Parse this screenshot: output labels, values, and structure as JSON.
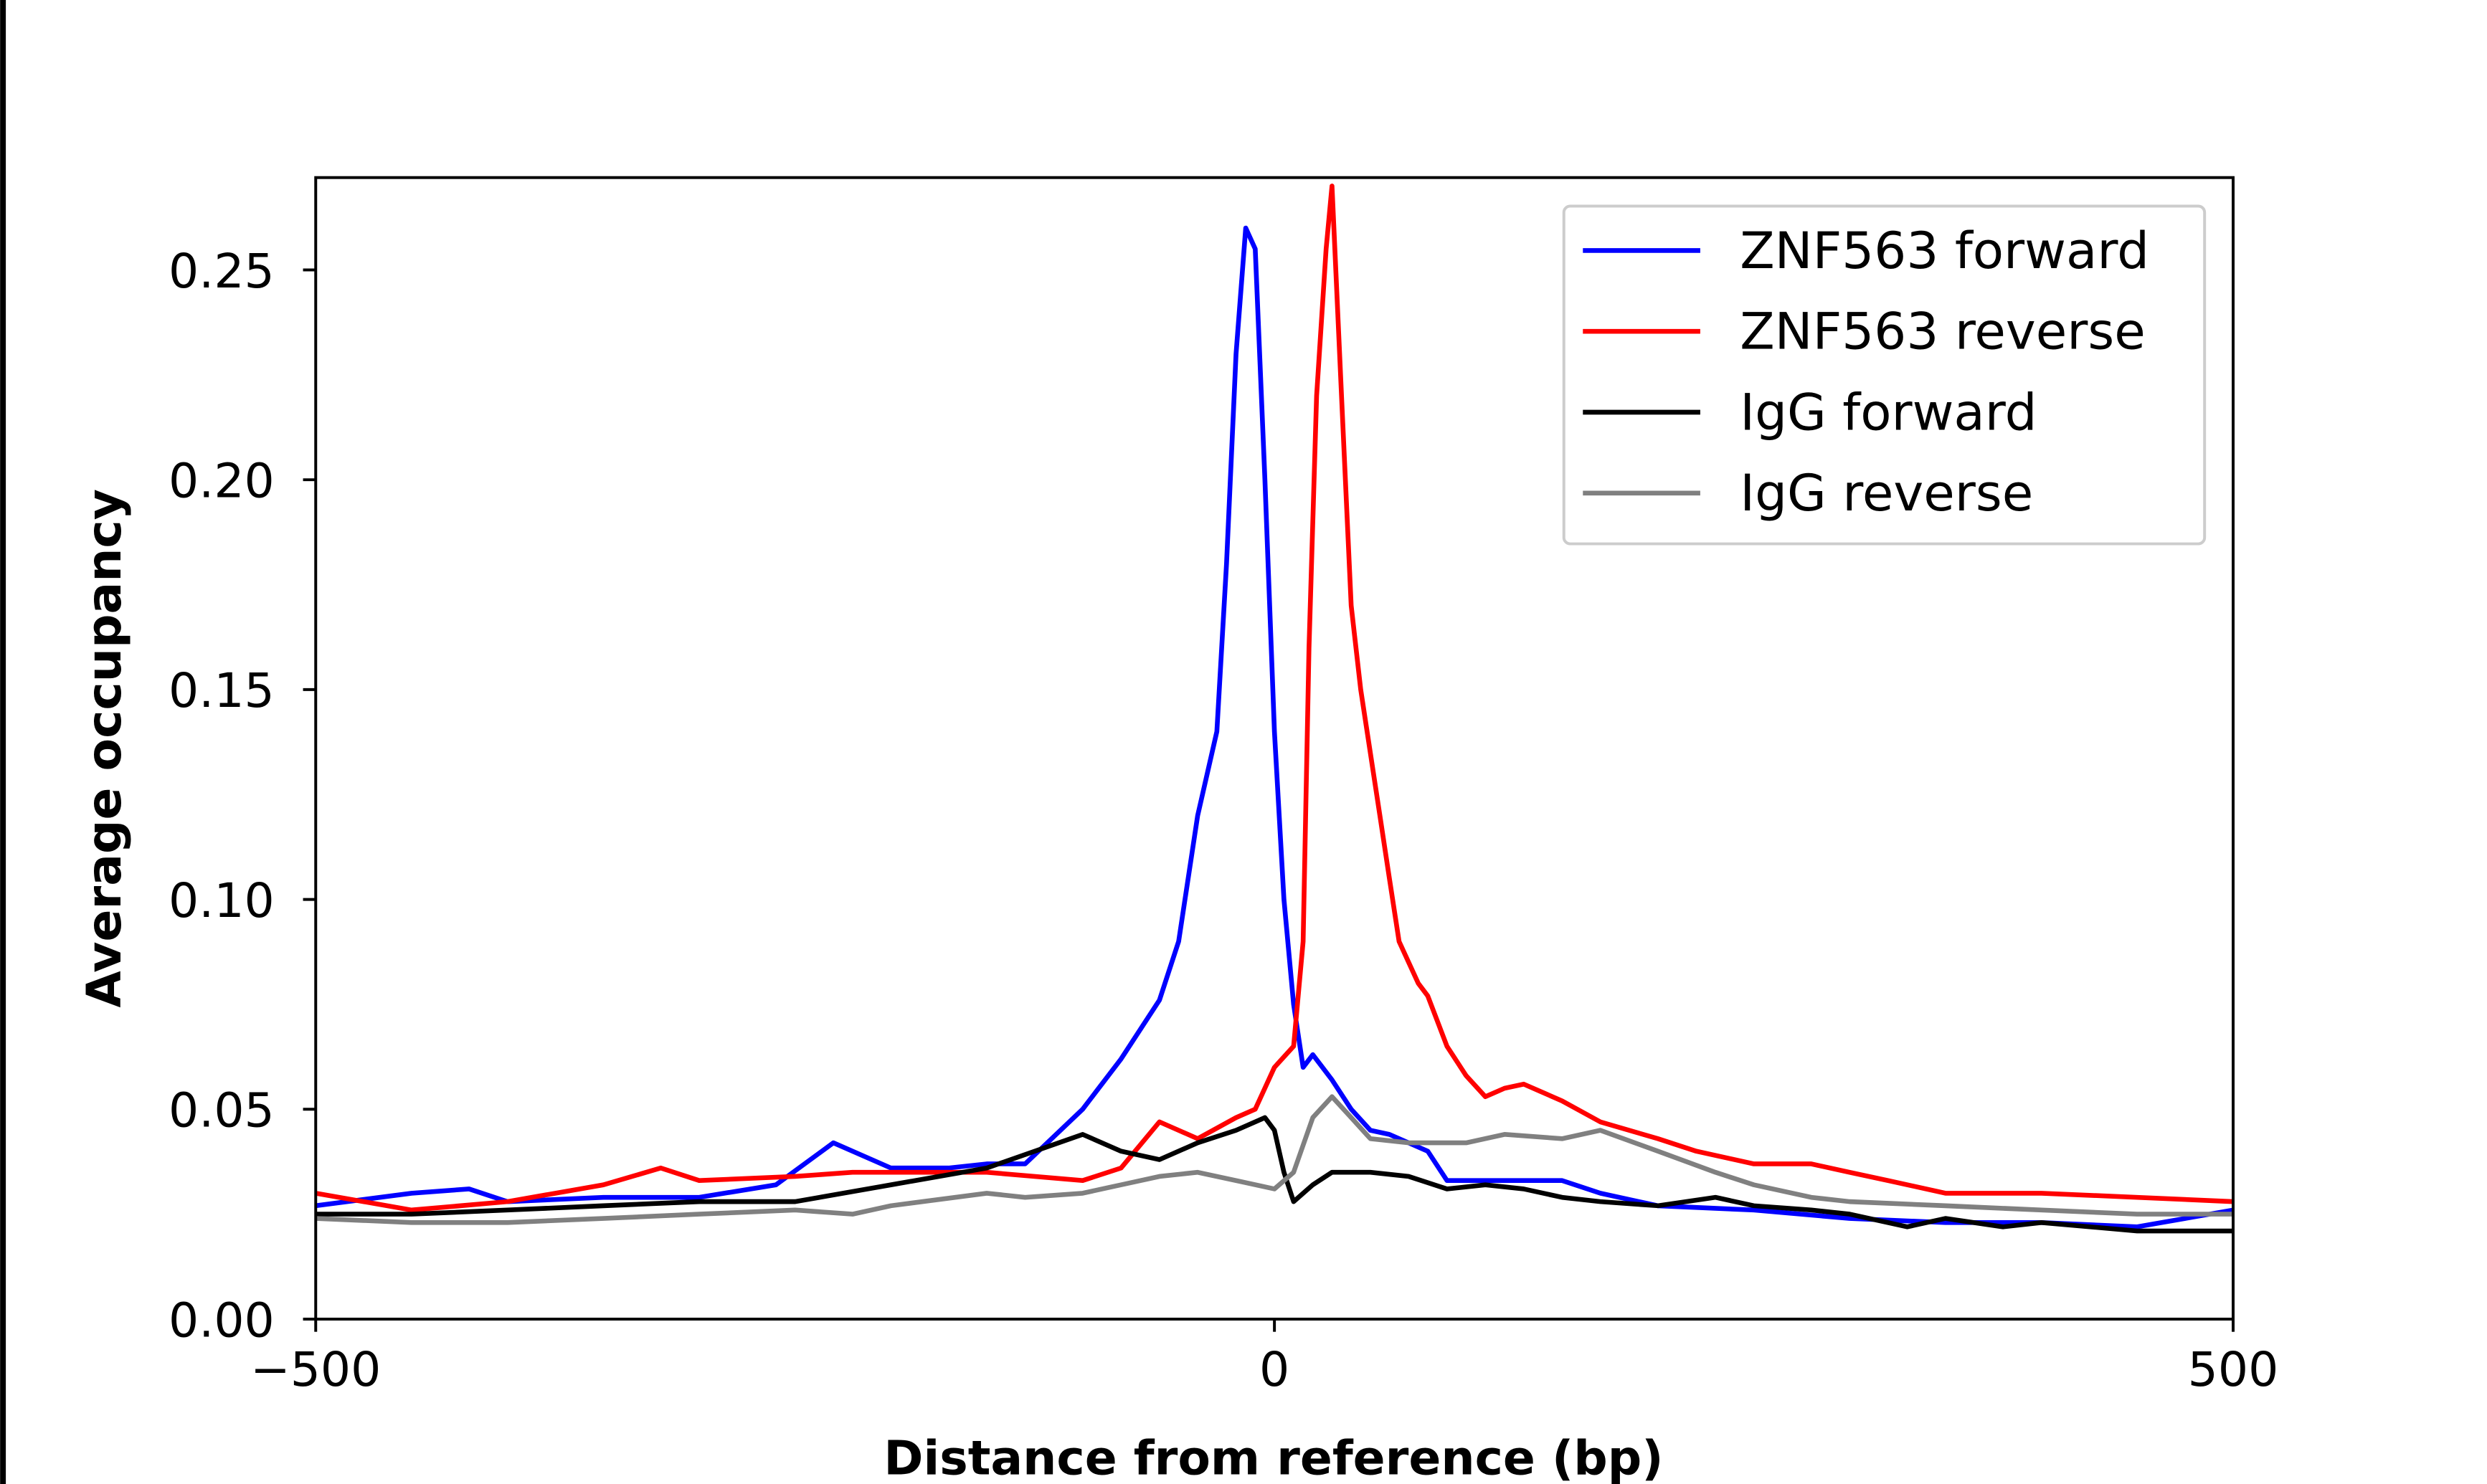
{
  "chart_data": {
    "type": "line",
    "title": "",
    "xlabel": "Distance from reference (bp)",
    "ylabel": "Average occupancy",
    "xlim": [
      -500,
      500
    ],
    "ylim": [
      0,
      0.272
    ],
    "xticks": [
      -500,
      0,
      500
    ],
    "xtick_labels": [
      "−500",
      "0",
      "500"
    ],
    "yticks": [
      0,
      0.05,
      0.1,
      0.15,
      0.2,
      0.25
    ],
    "ytick_labels": [
      "0.00",
      "0.05",
      "0.10",
      "0.15",
      "0.20",
      "0.25"
    ],
    "grid": false,
    "legend_position": "top-right",
    "series": [
      {
        "name": "ZNF563 forward",
        "color": "#0000ff",
        "x": [
          -500,
          -450,
          -420,
          -400,
          -350,
          -300,
          -260,
          -230,
          -200,
          -170,
          -150,
          -130,
          -100,
          -80,
          -60,
          -50,
          -40,
          -30,
          -25,
          -20,
          -15,
          -10,
          -5,
          0,
          5,
          10,
          15,
          20,
          30,
          40,
          50,
          60,
          80,
          90,
          100,
          150,
          170,
          200,
          250,
          300,
          350,
          400,
          450,
          500
        ],
        "y": [
          0.027,
          0.03,
          0.031,
          0.028,
          0.029,
          0.029,
          0.032,
          0.042,
          0.036,
          0.036,
          0.037,
          0.037,
          0.05,
          0.062,
          0.076,
          0.09,
          0.12,
          0.14,
          0.18,
          0.23,
          0.26,
          0.255,
          0.2,
          0.14,
          0.1,
          0.075,
          0.06,
          0.063,
          0.057,
          0.05,
          0.045,
          0.044,
          0.04,
          0.033,
          0.033,
          0.033,
          0.03,
          0.027,
          0.026,
          0.024,
          0.023,
          0.023,
          0.022,
          0.026
        ]
      },
      {
        "name": "ZNF563 reverse",
        "color": "#ff0000",
        "x": [
          -500,
          -450,
          -400,
          -350,
          -320,
          -300,
          -250,
          -220,
          -150,
          -100,
          -80,
          -60,
          -40,
          -20,
          -10,
          0,
          10,
          15,
          18,
          22,
          27,
          30,
          35,
          40,
          45,
          55,
          60,
          65,
          75,
          80,
          90,
          100,
          110,
          120,
          130,
          150,
          170,
          200,
          220,
          250,
          280,
          300,
          320,
          350,
          380,
          400,
          450,
          500
        ],
        "y": [
          0.03,
          0.026,
          0.028,
          0.032,
          0.036,
          0.033,
          0.034,
          0.035,
          0.035,
          0.033,
          0.036,
          0.047,
          0.043,
          0.048,
          0.05,
          0.06,
          0.065,
          0.09,
          0.16,
          0.22,
          0.255,
          0.27,
          0.22,
          0.17,
          0.15,
          0.12,
          0.105,
          0.09,
          0.08,
          0.077,
          0.065,
          0.058,
          0.053,
          0.055,
          0.056,
          0.052,
          0.047,
          0.043,
          0.04,
          0.037,
          0.037,
          0.035,
          0.033,
          0.03,
          0.03,
          0.03,
          0.029,
          0.028
        ]
      },
      {
        "name": "IgG forward",
        "color": "#000000",
        "x": [
          -500,
          -450,
          -400,
          -350,
          -300,
          -250,
          -200,
          -150,
          -100,
          -80,
          -60,
          -40,
          -20,
          -5,
          0,
          5,
          10,
          20,
          30,
          50,
          70,
          90,
          110,
          130,
          150,
          170,
          200,
          230,
          250,
          280,
          300,
          330,
          350,
          380,
          400,
          450,
          500
        ],
        "y": [
          0.025,
          0.025,
          0.026,
          0.027,
          0.028,
          0.028,
          0.032,
          0.036,
          0.044,
          0.04,
          0.038,
          0.042,
          0.045,
          0.048,
          0.045,
          0.035,
          0.028,
          0.032,
          0.035,
          0.035,
          0.034,
          0.031,
          0.032,
          0.031,
          0.029,
          0.028,
          0.027,
          0.029,
          0.027,
          0.026,
          0.025,
          0.022,
          0.024,
          0.022,
          0.023,
          0.021,
          0.021
        ]
      },
      {
        "name": "IgG reverse",
        "color": "#808080",
        "x": [
          -500,
          -450,
          -400,
          -350,
          -300,
          -250,
          -220,
          -200,
          -150,
          -130,
          -100,
          -80,
          -60,
          -40,
          -20,
          0,
          10,
          20,
          30,
          40,
          50,
          70,
          100,
          120,
          150,
          170,
          200,
          230,
          250,
          280,
          300,
          350,
          400,
          450,
          500
        ],
        "y": [
          0.024,
          0.023,
          0.023,
          0.024,
          0.025,
          0.026,
          0.025,
          0.027,
          0.03,
          0.029,
          0.03,
          0.032,
          0.034,
          0.035,
          0.033,
          0.031,
          0.035,
          0.048,
          0.053,
          0.048,
          0.043,
          0.042,
          0.042,
          0.044,
          0.043,
          0.045,
          0.04,
          0.035,
          0.032,
          0.029,
          0.028,
          0.027,
          0.026,
          0.025,
          0.025
        ]
      }
    ]
  }
}
